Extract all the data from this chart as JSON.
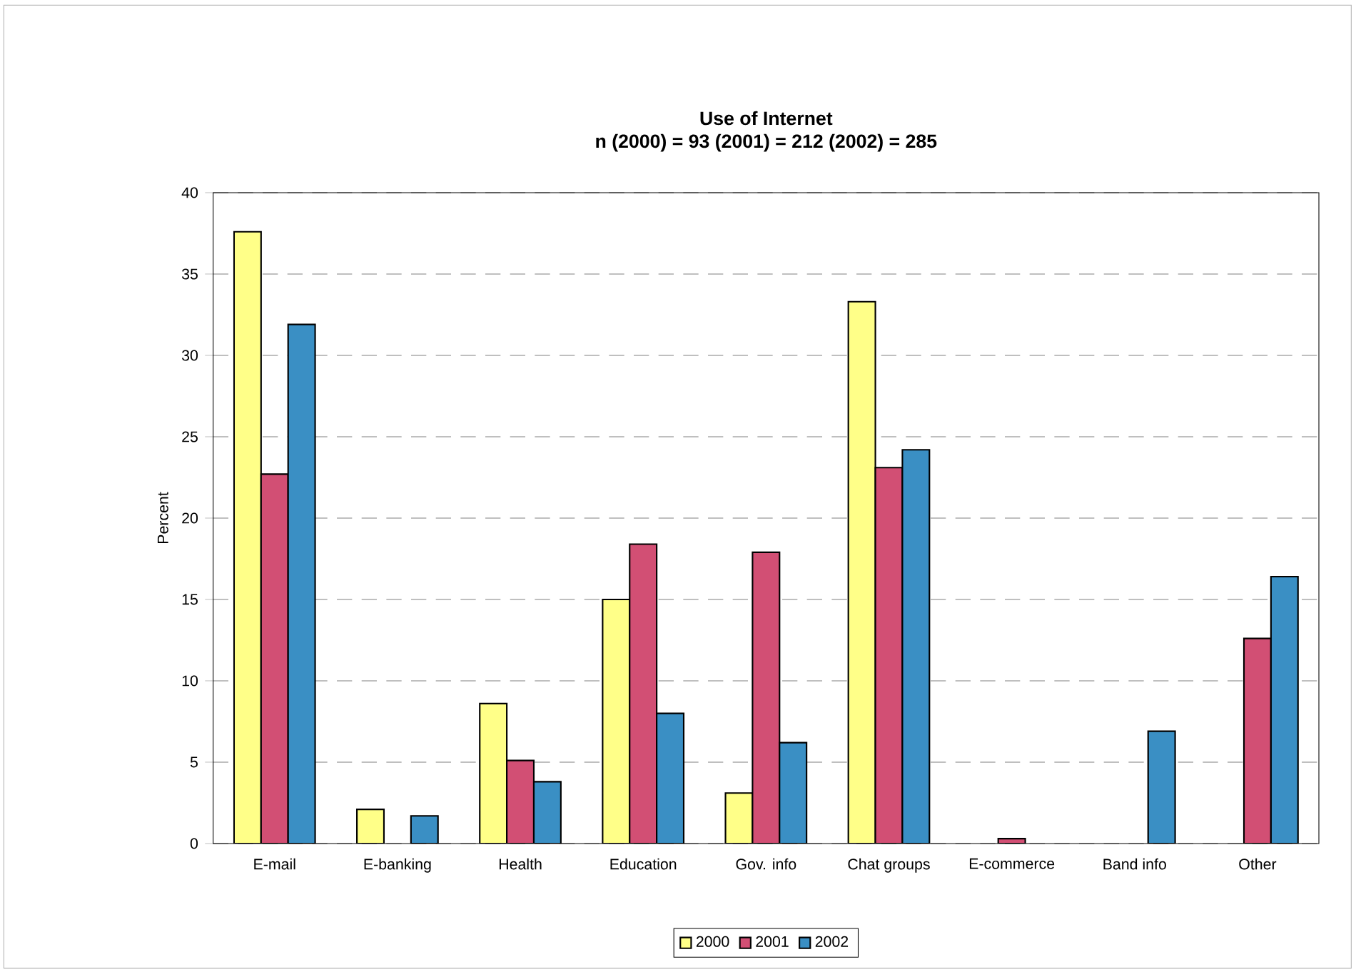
{
  "chart_data": {
    "type": "bar",
    "title": "Use of Internet",
    "subtitle": "n (2000) = 93 (2001) = 212 (2002) = 285",
    "ylabel": "Percent",
    "categories": [
      "E-mail",
      "E-banking",
      "Health",
      "Education",
      "Gov. info",
      "Chat groups",
      "E-commerce",
      "Band info",
      "Other"
    ],
    "series": [
      {
        "name": "2000",
        "color": "#ffff88",
        "values": [
          37.6,
          2.1,
          8.6,
          15.0,
          3.1,
          33.3,
          null,
          null,
          null
        ]
      },
      {
        "name": "2001",
        "color": "#d24f74",
        "values": [
          22.7,
          null,
          5.1,
          18.4,
          17.9,
          23.1,
          0.3,
          null,
          12.6
        ]
      },
      {
        "name": "2002",
        "color": "#3a8fc4",
        "values": [
          31.9,
          1.7,
          3.8,
          8.0,
          6.2,
          24.2,
          null,
          6.9,
          16.4
        ]
      }
    ],
    "ylim": [
      0,
      40
    ],
    "yticks": [
      0,
      5,
      10,
      15,
      20,
      25,
      30,
      35,
      40
    ],
    "grid": "y",
    "legend": "bottom"
  }
}
